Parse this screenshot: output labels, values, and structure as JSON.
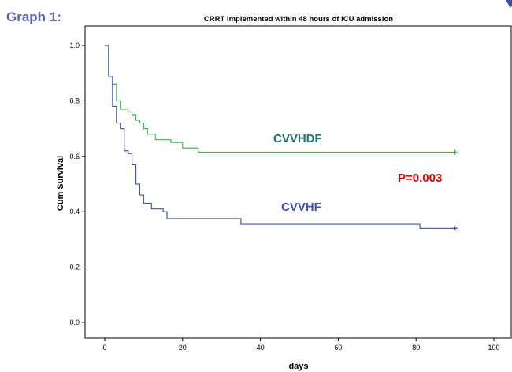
{
  "heading": "Graph 1:",
  "chart_data": {
    "type": "line",
    "title": "CRRT implemented within 48 hours of ICU admission",
    "xlabel": "days",
    "ylabel": "Cum Survival",
    "xlim": [
      -5,
      100
    ],
    "ylim": [
      0.0,
      1.05
    ],
    "x_ticks": [
      0,
      20,
      40,
      60,
      80,
      100
    ],
    "y_ticks": [
      0.0,
      0.2,
      0.4,
      0.6,
      0.8,
      1.0
    ],
    "x_tick_labels": [
      "0",
      "20",
      "40",
      "60",
      "80",
      "100"
    ],
    "y_tick_labels": [
      "0.0",
      "0.2",
      "0.4",
      "0.6",
      "0.8",
      "1.0"
    ],
    "grid": false,
    "series": [
      {
        "name": "CVVHDF",
        "color": "#43b54b",
        "steps": [
          [
            0,
            1.0
          ],
          [
            1,
            0.89
          ],
          [
            2,
            0.86
          ],
          [
            3,
            0.8
          ],
          [
            4,
            0.77
          ],
          [
            6,
            0.76
          ],
          [
            7,
            0.75
          ],
          [
            8,
            0.73
          ],
          [
            9,
            0.72
          ],
          [
            10,
            0.7
          ],
          [
            11,
            0.68
          ],
          [
            13,
            0.66
          ],
          [
            17,
            0.65
          ],
          [
            20,
            0.63
          ],
          [
            24,
            0.615
          ],
          [
            90,
            0.615
          ]
        ],
        "censor_x": [
          90
        ]
      },
      {
        "name": "CVVHF",
        "color": "#4058a0",
        "steps": [
          [
            0,
            1.0
          ],
          [
            1,
            0.89
          ],
          [
            2,
            0.78
          ],
          [
            3,
            0.72
          ],
          [
            4,
            0.7
          ],
          [
            5,
            0.62
          ],
          [
            6,
            0.61
          ],
          [
            7,
            0.57
          ],
          [
            8,
            0.5
          ],
          [
            9,
            0.46
          ],
          [
            10,
            0.43
          ],
          [
            12,
            0.41
          ],
          [
            15,
            0.4
          ],
          [
            16,
            0.375
          ],
          [
            35,
            0.355
          ],
          [
            81,
            0.34
          ],
          [
            90,
            0.34
          ]
        ],
        "censor_x": [
          90
        ]
      }
    ],
    "annotations": [
      {
        "text": "CVVHDF",
        "color": "#1f6f6f"
      },
      {
        "text": "CVVHF",
        "color": "#4151a6"
      },
      {
        "text": "P=0.003",
        "color": "#e00000"
      }
    ]
  }
}
